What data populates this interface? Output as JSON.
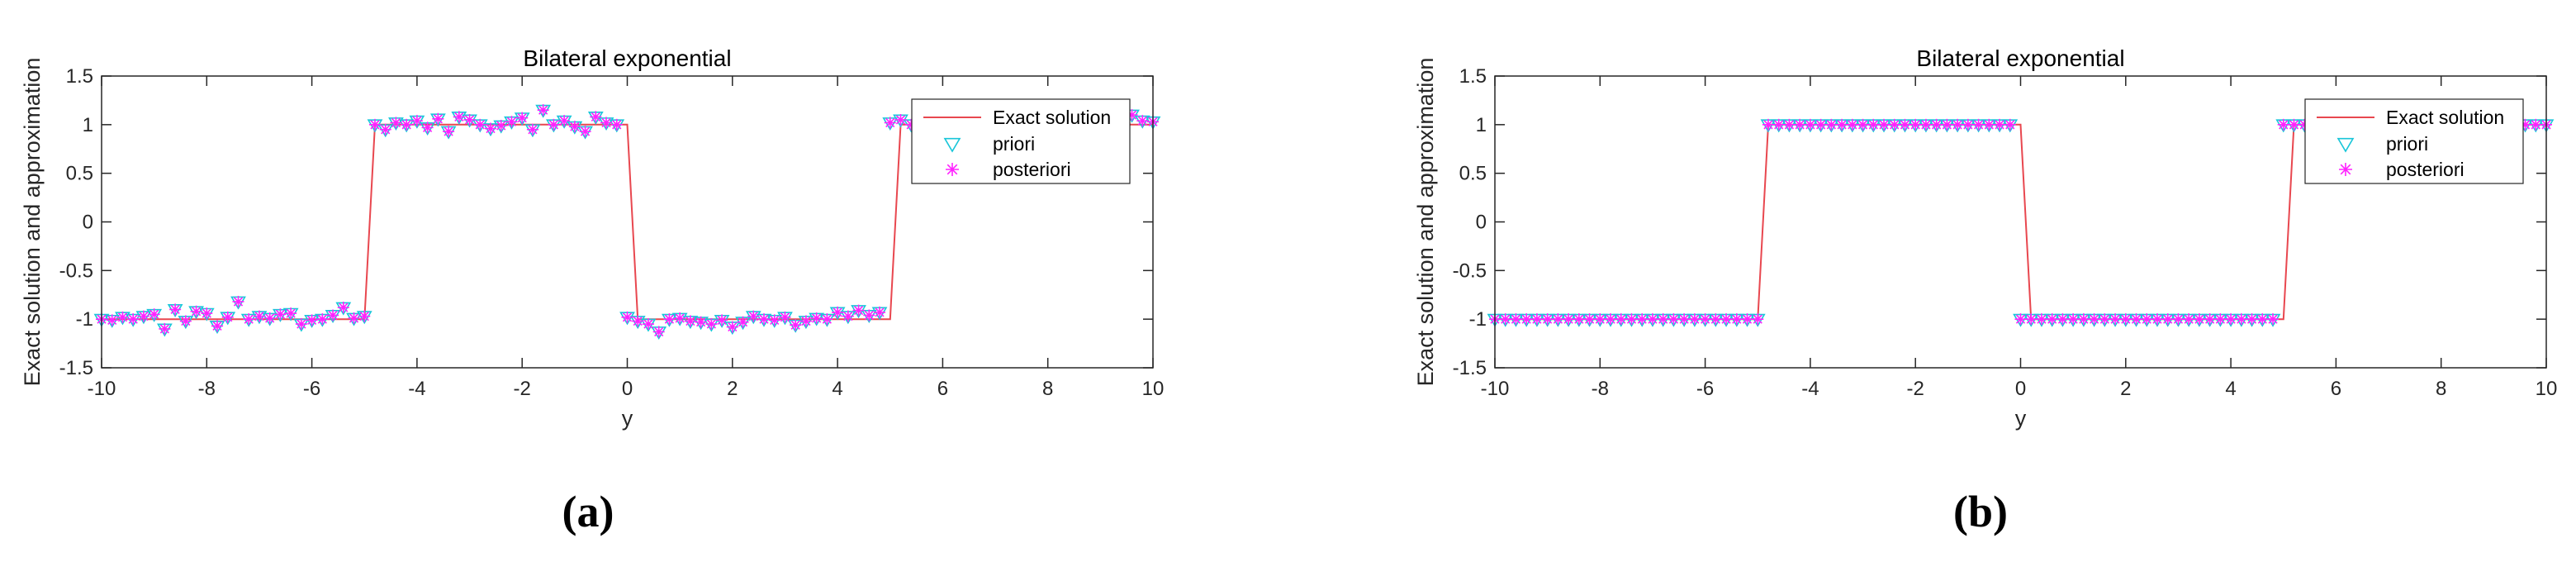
{
  "captions": [
    "(a)",
    "(b)"
  ],
  "chart_data": [
    {
      "type": "line",
      "title": "Bilateral exponential",
      "xlabel": "y",
      "ylabel": "Exact solution and approximation",
      "xlim": [
        -10,
        10
      ],
      "ylim": [
        -1.5,
        1.5
      ],
      "xticks": [
        -10,
        -8,
        -6,
        -4,
        -2,
        0,
        2,
        4,
        6,
        8,
        10
      ],
      "yticks": [
        -1.5,
        -1,
        -0.5,
        0,
        0.5,
        1,
        1.5
      ],
      "xtick_labels": [
        "-10",
        "-8",
        "-6",
        "-4",
        "-2",
        "0",
        "2",
        "4",
        "6",
        "8",
        "10"
      ],
      "ytick_labels": [
        "-1.5",
        "-1",
        "-0.5",
        "0",
        "0.5",
        "1",
        "1.5"
      ],
      "legend": {
        "position": "top-right",
        "entries": [
          "Exact solution",
          "priori",
          "posteriori"
        ]
      },
      "grid": false,
      "colors": {
        "exact": "#e8474f",
        "priori": "#19c6d9",
        "posteriori": "#ff22ff"
      },
      "series": [
        {
          "name": "Exact solution",
          "style": "line",
          "x": [
            -10,
            -5,
            -4.8,
            0,
            0.2,
            5,
            5.2,
            10
          ],
          "y": [
            -1,
            -1,
            1,
            1,
            -1,
            -1,
            1,
            1
          ]
        },
        {
          "name": "priori",
          "style": "marker-triangle-down",
          "x_start": -10,
          "x_step": 0.2,
          "y": [
            -1,
            -1.01,
            -0.98,
            -1,
            -0.97,
            -0.95,
            -1.1,
            -0.9,
            -1.02,
            -0.92,
            -0.94,
            -1.07,
            -0.98,
            -0.82,
            -1.0,
            -0.97,
            -0.99,
            -0.95,
            -0.94,
            -1.05,
            -1.01,
            -1.0,
            -0.96,
            -0.88,
            -0.99,
            -0.97,
            1,
            0.95,
            1.02,
            1.0,
            1.04,
            0.97,
            1.06,
            0.93,
            1.08,
            1.05,
            1.0,
            0.96,
            0.99,
            1.03,
            1.07,
            0.95,
            1.15,
            1.0,
            1.04,
            0.98,
            0.93,
            1.08,
            1.02,
            1.0,
            -0.98,
            -1.02,
            -1.05,
            -1.13,
            -1.0,
            -0.99,
            -1.02,
            -1.03,
            -1.05,
            -1.01,
            -1.08,
            -1.03,
            -0.97,
            -1.0,
            -1.01,
            -0.98,
            -1.06,
            -1.02,
            -0.99,
            -1.0,
            -0.93,
            -0.97,
            -0.91,
            -0.96,
            -0.93,
            1.02,
            1.05,
            1.0,
            1.02,
            1.01,
            1.0,
            1.04,
            1.02,
            0.99,
            1.01,
            1.03,
            1.0,
            1.01,
            1.02,
            1.0,
            1.0,
            1.02,
            1.01,
            1.0,
            1.01,
            1.02,
            1.0,
            1.03,
            1.1,
            1.04,
            1.03
          ]
        },
        {
          "name": "posteriori",
          "style": "marker-asterisk",
          "x_start": -10,
          "x_step": 0.2,
          "y": [
            -1,
            -1.01,
            -0.98,
            -1,
            -0.97,
            -0.95,
            -1.1,
            -0.9,
            -1.02,
            -0.92,
            -0.94,
            -1.07,
            -0.98,
            -0.82,
            -1.0,
            -0.97,
            -0.99,
            -0.95,
            -0.94,
            -1.05,
            -1.01,
            -1.0,
            -0.96,
            -0.88,
            -0.99,
            -0.97,
            1,
            0.95,
            1.02,
            1.0,
            1.04,
            0.97,
            1.06,
            0.93,
            1.08,
            1.05,
            1.0,
            0.96,
            0.99,
            1.03,
            1.07,
            0.95,
            1.15,
            1.0,
            1.04,
            0.98,
            0.93,
            1.08,
            1.02,
            1.0,
            -0.98,
            -1.02,
            -1.05,
            -1.13,
            -1.0,
            -0.99,
            -1.02,
            -1.03,
            -1.05,
            -1.01,
            -1.08,
            -1.03,
            -0.97,
            -1.0,
            -1.01,
            -0.98,
            -1.06,
            -1.02,
            -0.99,
            -1.0,
            -0.93,
            -0.97,
            -0.91,
            -0.96,
            -0.93,
            1.02,
            1.05,
            1.0,
            1.02,
            1.01,
            1.0,
            1.04,
            1.02,
            0.99,
            1.01,
            1.03,
            1.0,
            1.01,
            1.02,
            1.0,
            1.0,
            1.02,
            1.01,
            1.0,
            1.01,
            1.02,
            1.0,
            1.03,
            1.1,
            1.04,
            1.03
          ]
        }
      ]
    },
    {
      "type": "line",
      "title": "Bilateral exponential",
      "xlabel": "y",
      "ylabel": "Exact solution and approximation",
      "xlim": [
        -10,
        10
      ],
      "ylim": [
        -1.5,
        1.5
      ],
      "xticks": [
        -10,
        -8,
        -6,
        -4,
        -2,
        0,
        2,
        4,
        6,
        8,
        10
      ],
      "yticks": [
        -1.5,
        -1,
        -0.5,
        0,
        0.5,
        1,
        1.5
      ],
      "xtick_labels": [
        "-10",
        "-8",
        "-6",
        "-4",
        "-2",
        "0",
        "2",
        "4",
        "6",
        "8",
        "10"
      ],
      "ytick_labels": [
        "-1.5",
        "-1",
        "-0.5",
        "0",
        "0.5",
        "1",
        "1.5"
      ],
      "legend": {
        "position": "top-right",
        "entries": [
          "Exact solution",
          "priori",
          "posteriori"
        ]
      },
      "grid": false,
      "colors": {
        "exact": "#e8474f",
        "priori": "#19c6d9",
        "posteriori": "#ff22ff"
      },
      "series": [
        {
          "name": "Exact solution",
          "style": "line",
          "x": [
            -10,
            -5,
            -4.8,
            0,
            0.2,
            5,
            5.2,
            10
          ],
          "y": [
            -1,
            -1,
            1,
            1,
            -1,
            -1,
            1,
            1
          ]
        },
        {
          "name": "priori",
          "style": "marker-triangle-down",
          "x_start": -10,
          "x_step": 0.2,
          "y": [
            -1,
            -1,
            -1,
            -1,
            -1,
            -1,
            -1,
            -1,
            -1,
            -1,
            -1,
            -1,
            -1,
            -1,
            -1,
            -1,
            -1,
            -1,
            -1,
            -1,
            -1,
            -1,
            -1,
            -1,
            -1,
            -1,
            1,
            1,
            1,
            1,
            1,
            1,
            1,
            1,
            1,
            1,
            1,
            1,
            1,
            1,
            1,
            1,
            1,
            1,
            1,
            1,
            1,
            1,
            1,
            1,
            -1,
            -1,
            -1,
            -1,
            -1,
            -1,
            -1,
            -1,
            -1,
            -1,
            -1,
            -1,
            -1,
            -1,
            -1,
            -1,
            -1,
            -1,
            -1,
            -1,
            -1,
            -1,
            -1,
            -1,
            -1,
            1,
            1,
            1,
            1,
            1,
            1,
            1,
            1,
            1,
            1,
            1,
            1,
            1,
            1,
            1,
            1,
            1,
            1,
            1,
            1,
            1,
            1,
            1,
            1,
            1,
            1
          ]
        },
        {
          "name": "posteriori",
          "style": "marker-asterisk",
          "x_start": -10,
          "x_step": 0.2,
          "y": [
            -1,
            -1,
            -1,
            -1,
            -1,
            -1,
            -1,
            -1,
            -1,
            -1,
            -1,
            -1,
            -1,
            -1,
            -1,
            -1,
            -1,
            -1,
            -1,
            -1,
            -1,
            -1,
            -1,
            -1,
            -1,
            -1,
            1,
            1,
            1,
            1,
            1,
            1,
            1,
            1,
            1,
            1,
            1,
            1,
            1,
            1,
            1,
            1,
            1,
            1,
            1,
            1,
            1,
            1,
            1,
            1,
            -1,
            -1,
            -1,
            -1,
            -1,
            -1,
            -1,
            -1,
            -1,
            -1,
            -1,
            -1,
            -1,
            -1,
            -1,
            -1,
            -1,
            -1,
            -1,
            -1,
            -1,
            -1,
            -1,
            -1,
            -1,
            1,
            1,
            1,
            1,
            1,
            1,
            1,
            1,
            1,
            1,
            1,
            1,
            1,
            1,
            1,
            1,
            1,
            1,
            1,
            1,
            1,
            1,
            1,
            1,
            1,
            1
          ]
        }
      ]
    }
  ]
}
